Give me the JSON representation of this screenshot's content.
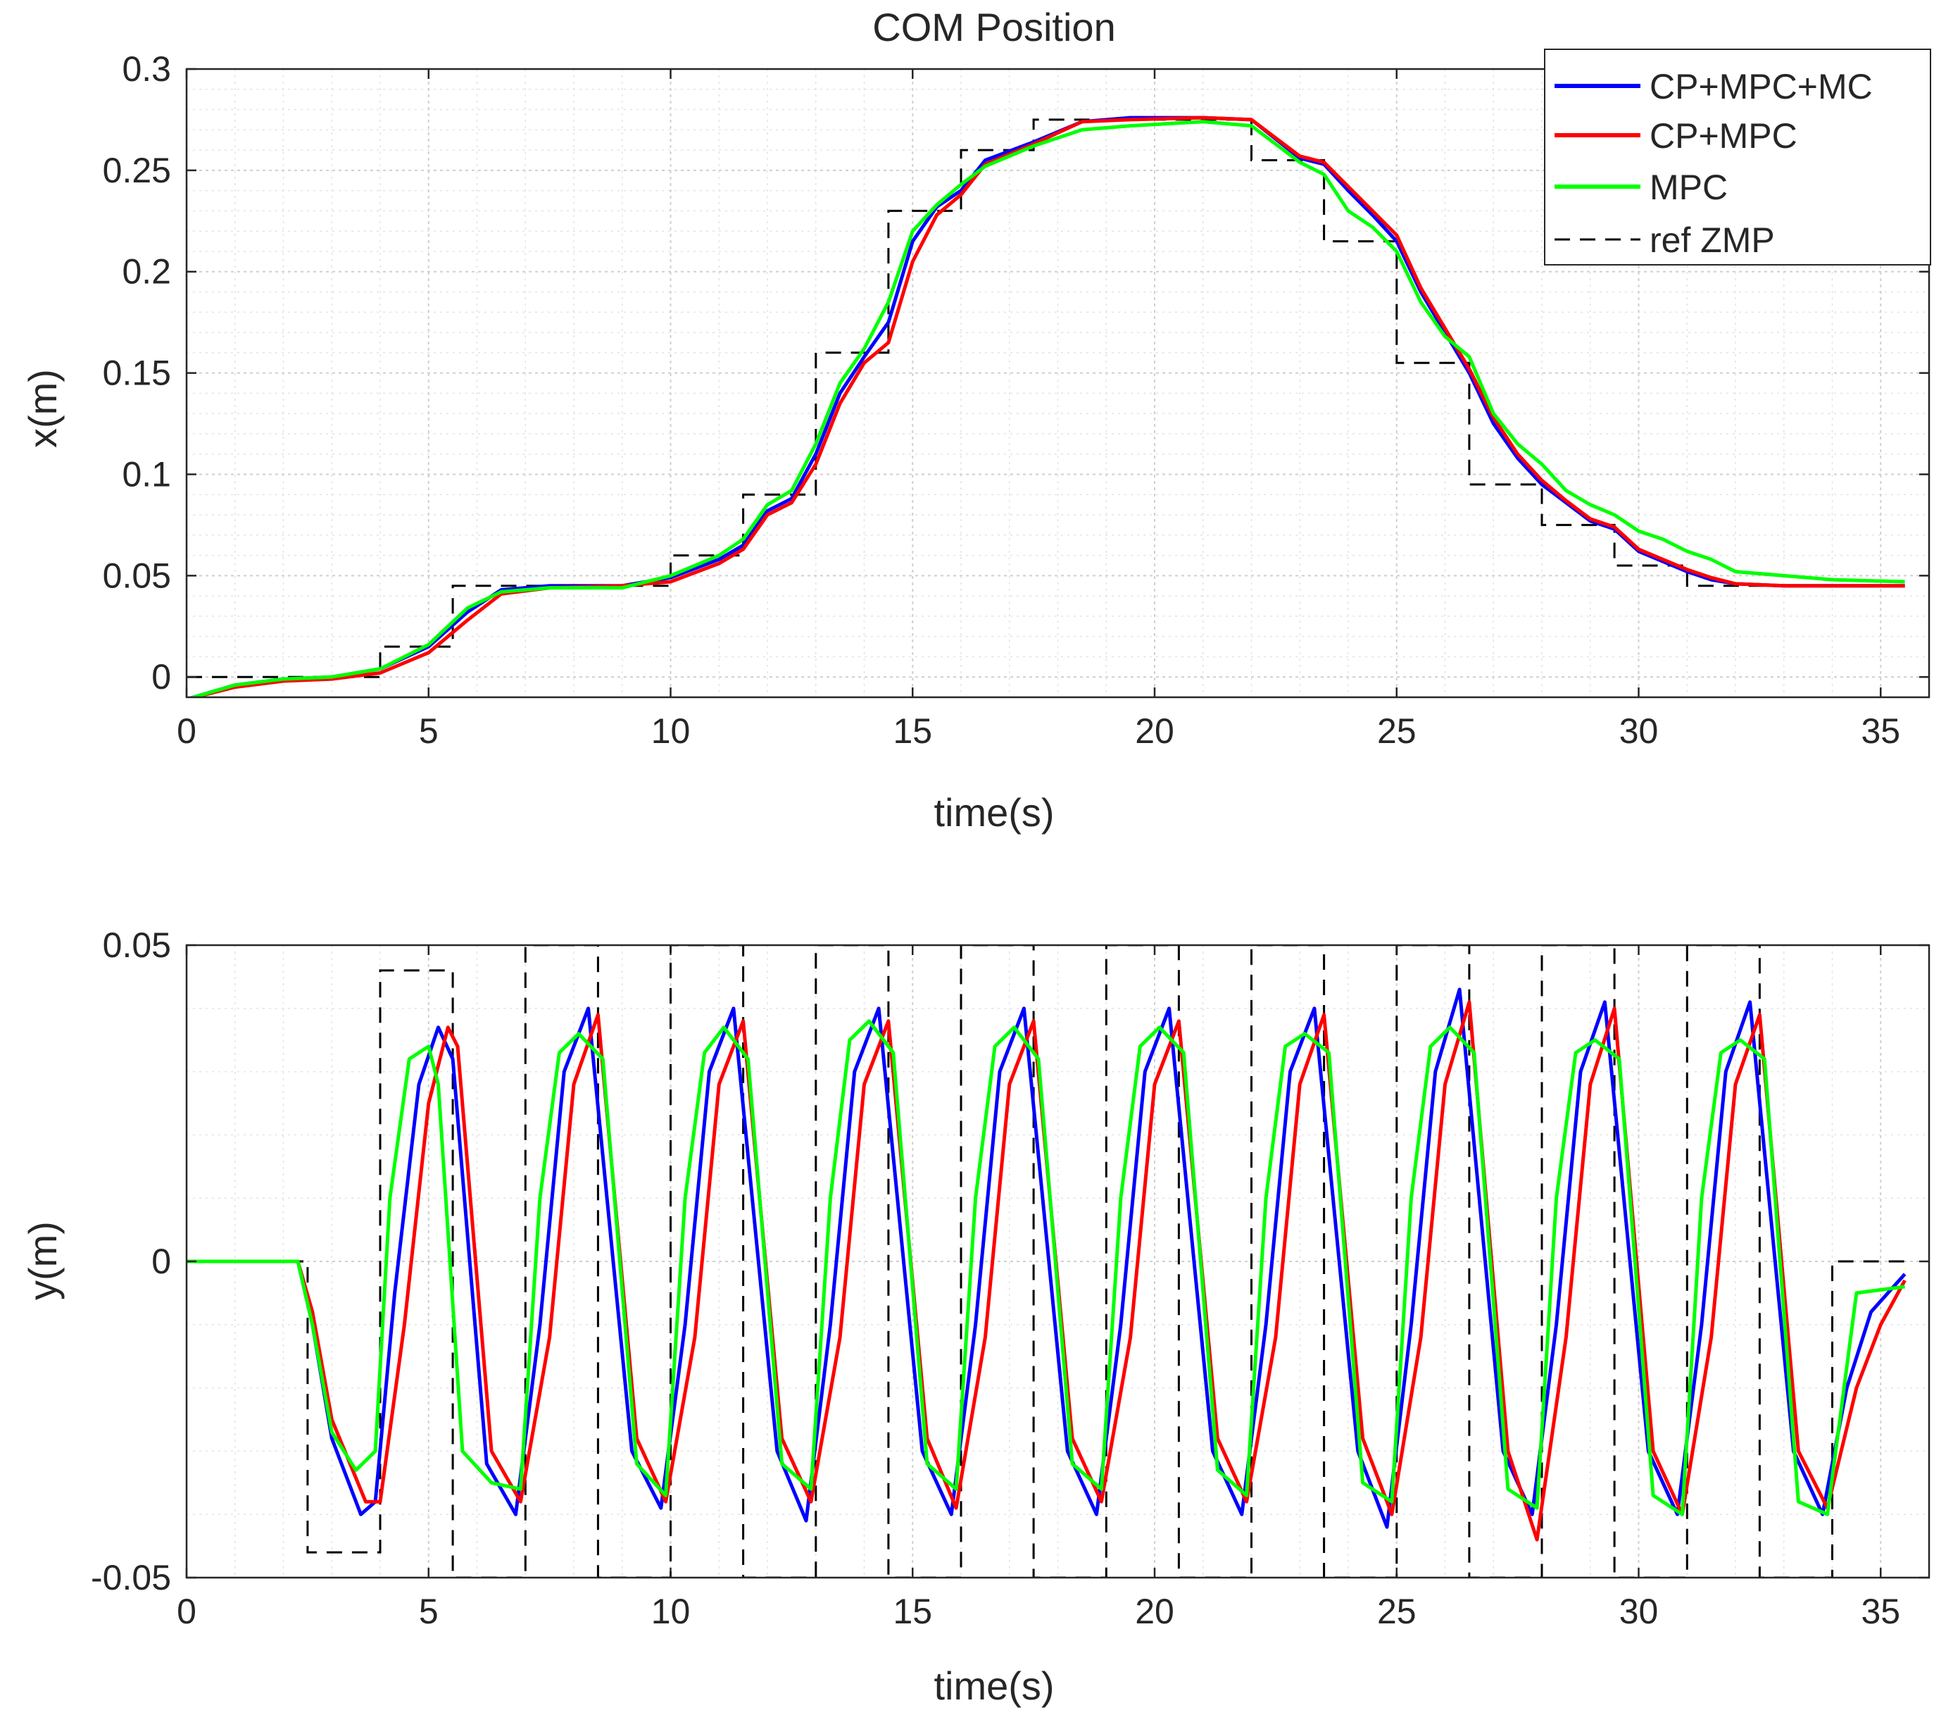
{
  "chart_data": [
    {
      "type": "line",
      "title": "COM Position",
      "xlabel": "time(s)",
      "ylabel": "x(m)",
      "xlim": [
        0,
        36
      ],
      "ylim": [
        -0.01,
        0.3
      ],
      "xticks": [
        0,
        5,
        10,
        15,
        20,
        25,
        30,
        35
      ],
      "yticks": [
        0,
        0.05,
        0.1,
        0.15,
        0.2,
        0.25,
        0.3
      ],
      "xtick_labels": [
        "0",
        "5",
        "10",
        "15",
        "20",
        "25",
        "30",
        "35"
      ],
      "ytick_labels": [
        "0",
        "0.05",
        "0.1",
        "0.15",
        "0.2",
        "0.25",
        "0.3"
      ],
      "grid": true,
      "legend_position": "top-right",
      "legend": [
        {
          "name": "CP+MPC+MC",
          "color": "#0000ff",
          "style": "solid"
        },
        {
          "name": "CP+MPC",
          "color": "#ff0000",
          "style": "solid"
        },
        {
          "name": "MPC",
          "color": "#00ff00",
          "style": "solid"
        },
        {
          "name": "ref ZMP",
          "color": "#000000",
          "style": "dashed"
        }
      ],
      "ref_zmp": {
        "x": [
          0,
          4,
          4,
          5.5,
          5.5,
          10,
          10,
          11.5,
          11.5,
          13,
          13,
          14.5,
          14.5,
          16,
          16,
          17.5,
          17.5,
          22,
          22,
          23.5,
          23.5,
          25,
          25,
          26.5,
          26.5,
          28,
          28,
          29.5,
          29.5,
          31,
          31,
          35.5
        ],
        "y": [
          0,
          0,
          0.015,
          0.015,
          0.045,
          0.045,
          0.06,
          0.06,
          0.09,
          0.09,
          0.16,
          0.16,
          0.23,
          0.23,
          0.26,
          0.26,
          0.275,
          0.275,
          0.255,
          0.255,
          0.215,
          0.215,
          0.155,
          0.155,
          0.095,
          0.095,
          0.075,
          0.075,
          0.055,
          0.055,
          0.045,
          0.045
        ]
      },
      "series": [
        {
          "name": "CP+MPC+MC",
          "color": "#0000ff",
          "x": [
            0,
            1,
            2,
            3,
            4,
            5,
            5.8,
            6.5,
            7.5,
            9,
            10,
            11,
            11.5,
            12,
            12.5,
            13,
            13.5,
            14,
            14.5,
            15,
            15.5,
            16,
            16.5,
            17.5,
            18.5,
            19.5,
            21,
            22,
            23,
            23.5,
            24,
            24.5,
            25,
            25.5,
            26,
            26.5,
            27,
            27.5,
            28,
            28.5,
            29,
            29.5,
            30,
            30.5,
            31,
            31.5,
            32,
            33,
            34,
            35.5
          ],
          "y": [
            -0.011,
            -0.004,
            -0.001,
            0,
            0.004,
            0.015,
            0.032,
            0.043,
            0.045,
            0.045,
            0.049,
            0.058,
            0.065,
            0.082,
            0.088,
            0.11,
            0.14,
            0.158,
            0.175,
            0.215,
            0.232,
            0.24,
            0.255,
            0.264,
            0.274,
            0.276,
            0.276,
            0.275,
            0.256,
            0.253,
            0.24,
            0.228,
            0.215,
            0.19,
            0.17,
            0.15,
            0.125,
            0.108,
            0.095,
            0.086,
            0.077,
            0.073,
            0.062,
            0.057,
            0.052,
            0.048,
            0.046,
            0.045,
            0.045,
            0.045
          ]
        },
        {
          "name": "CP+MPC",
          "color": "#ff0000",
          "x": [
            0,
            1,
            2,
            3,
            4,
            5,
            5.8,
            6.5,
            7.5,
            9,
            10,
            11,
            11.5,
            12,
            12.5,
            13,
            13.5,
            14,
            14.5,
            15,
            15.5,
            16,
            16.5,
            17.5,
            18.5,
            19.5,
            21,
            22,
            23,
            23.5,
            24,
            24.5,
            25,
            25.5,
            26,
            26.5,
            27,
            27.5,
            28,
            28.5,
            29,
            29.5,
            30,
            30.5,
            31,
            31.5,
            32,
            33,
            34,
            35.5
          ],
          "y": [
            -0.011,
            -0.005,
            -0.002,
            -0.001,
            0.002,
            0.012,
            0.028,
            0.041,
            0.044,
            0.045,
            0.047,
            0.056,
            0.063,
            0.08,
            0.086,
            0.105,
            0.135,
            0.155,
            0.165,
            0.205,
            0.228,
            0.238,
            0.253,
            0.263,
            0.274,
            0.275,
            0.276,
            0.275,
            0.257,
            0.254,
            0.242,
            0.23,
            0.218,
            0.192,
            0.172,
            0.152,
            0.128,
            0.11,
            0.097,
            0.087,
            0.078,
            0.074,
            0.063,
            0.058,
            0.053,
            0.049,
            0.046,
            0.045,
            0.045,
            0.045
          ]
        },
        {
          "name": "MPC",
          "color": "#00ff00",
          "x": [
            0,
            1,
            2,
            3,
            4,
            5,
            5.8,
            6.5,
            7.5,
            9,
            10,
            11,
            11.5,
            12,
            12.5,
            13,
            13.5,
            14,
            14.5,
            15,
            15.5,
            16,
            16.5,
            17.5,
            18.5,
            19.5,
            21,
            22,
            23,
            23.5,
            24,
            24.5,
            25,
            25.5,
            26,
            26.5,
            27,
            27.5,
            28,
            28.5,
            29,
            29.5,
            30,
            30.5,
            31,
            31.5,
            32,
            33,
            34,
            35.5
          ],
          "y": [
            -0.011,
            -0.004,
            -0.001,
            0,
            0.004,
            0.016,
            0.034,
            0.042,
            0.044,
            0.044,
            0.05,
            0.06,
            0.068,
            0.085,
            0.092,
            0.115,
            0.145,
            0.162,
            0.185,
            0.22,
            0.233,
            0.243,
            0.252,
            0.262,
            0.27,
            0.272,
            0.274,
            0.272,
            0.254,
            0.248,
            0.23,
            0.222,
            0.21,
            0.185,
            0.168,
            0.158,
            0.13,
            0.115,
            0.105,
            0.092,
            0.085,
            0.08,
            0.072,
            0.068,
            0.062,
            0.058,
            0.052,
            0.05,
            0.048,
            0.047
          ]
        }
      ]
    },
    {
      "type": "line",
      "title": "",
      "xlabel": "time(s)",
      "ylabel": "y(m)",
      "xlim": [
        0,
        36
      ],
      "ylim": [
        -0.05,
        0.05
      ],
      "xticks": [
        0,
        5,
        10,
        15,
        20,
        25,
        30,
        35
      ],
      "yticks": [
        -0.05,
        0,
        0.05
      ],
      "xtick_labels": [
        "0",
        "5",
        "10",
        "15",
        "20",
        "25",
        "30",
        "35"
      ],
      "ytick_labels": [
        "-0.05",
        "0",
        "0.05"
      ],
      "grid": true,
      "ref_zmp": {
        "x": [
          0,
          2.5,
          2.5,
          4,
          4,
          5.5,
          5.5,
          7,
          7,
          8.5,
          8.5,
          10,
          10,
          11.5,
          11.5,
          13,
          13,
          14.5,
          14.5,
          16,
          16,
          17.5,
          17.5,
          19,
          19,
          20.5,
          20.5,
          22,
          22,
          23.5,
          23.5,
          25,
          25,
          26.5,
          26.5,
          28,
          28,
          29.5,
          29.5,
          31,
          31,
          32.5,
          32.5,
          34,
          34,
          35.5
        ],
        "y": [
          0,
          0,
          -0.046,
          -0.046,
          0.046,
          0.046,
          -0.05,
          -0.05,
          0.05,
          0.05,
          -0.05,
          -0.05,
          0.05,
          0.05,
          -0.05,
          -0.05,
          0.05,
          0.05,
          -0.05,
          -0.05,
          0.05,
          0.05,
          -0.05,
          -0.05,
          0.05,
          0.05,
          -0.05,
          -0.05,
          0.05,
          0.05,
          -0.05,
          -0.05,
          0.05,
          0.05,
          -0.05,
          -0.05,
          0.05,
          0.05,
          -0.05,
          -0.05,
          0.05,
          0.05,
          -0.05,
          -0.05,
          0,
          0
        ]
      },
      "series": [
        {
          "name": "CP+MPC+MC",
          "color": "#0000ff",
          "x": [
            0,
            2.3,
            2.6,
            3,
            3.6,
            3.9,
            4.3,
            4.8,
            5.2,
            5.5,
            6.2,
            6.8,
            7.3,
            7.8,
            8.3,
            9.2,
            9.8,
            10.3,
            10.8,
            11.3,
            12.2,
            12.8,
            13.3,
            13.8,
            14.3,
            15.2,
            15.8,
            16.3,
            16.8,
            17.3,
            18.2,
            18.8,
            19.3,
            19.8,
            20.3,
            21.2,
            21.8,
            22.3,
            22.8,
            23.3,
            24.2,
            24.8,
            25.3,
            25.8,
            26.3,
            27.2,
            27.8,
            28.3,
            28.8,
            29.3,
            30.2,
            30.8,
            31.3,
            31.8,
            32.3,
            33.2,
            33.8,
            34.3,
            34.8,
            35.5
          ],
          "y": [
            0,
            0,
            -0.01,
            -0.028,
            -0.04,
            -0.038,
            -0.005,
            0.028,
            0.037,
            0.032,
            -0.032,
            -0.04,
            -0.01,
            0.03,
            0.04,
            -0.03,
            -0.039,
            -0.01,
            0.03,
            0.04,
            -0.03,
            -0.041,
            -0.01,
            0.03,
            0.04,
            -0.03,
            -0.04,
            -0.01,
            0.03,
            0.04,
            -0.03,
            -0.04,
            -0.01,
            0.03,
            0.04,
            -0.03,
            -0.04,
            -0.01,
            0.03,
            0.04,
            -0.03,
            -0.042,
            -0.01,
            0.03,
            0.043,
            -0.03,
            -0.04,
            -0.01,
            0.03,
            0.041,
            -0.03,
            -0.04,
            -0.01,
            0.03,
            0.041,
            -0.03,
            -0.04,
            -0.02,
            -0.008,
            -0.002
          ]
        },
        {
          "name": "CP+MPC",
          "color": "#ff0000",
          "x": [
            0,
            2.3,
            2.6,
            3,
            3.7,
            4,
            4.5,
            5,
            5.4,
            5.6,
            6.3,
            6.9,
            7.5,
            8,
            8.5,
            9.3,
            9.9,
            10.5,
            11,
            11.5,
            12.3,
            12.9,
            13.5,
            14,
            14.5,
            15.3,
            15.9,
            16.5,
            17,
            17.5,
            18.3,
            18.9,
            19.5,
            20,
            20.5,
            21.3,
            21.9,
            22.5,
            23,
            23.5,
            24.3,
            24.9,
            25.5,
            26,
            26.5,
            27.3,
            27.9,
            28.5,
            29,
            29.5,
            30.3,
            30.9,
            31.5,
            32,
            32.5,
            33.3,
            33.9,
            34.5,
            35,
            35.5
          ],
          "y": [
            0,
            0,
            -0.008,
            -0.025,
            -0.038,
            -0.038,
            -0.01,
            0.025,
            0.037,
            0.034,
            -0.03,
            -0.038,
            -0.012,
            0.028,
            0.039,
            -0.028,
            -0.038,
            -0.012,
            0.028,
            0.038,
            -0.028,
            -0.038,
            -0.012,
            0.028,
            0.038,
            -0.028,
            -0.039,
            -0.012,
            0.028,
            0.038,
            -0.028,
            -0.038,
            -0.012,
            0.028,
            0.038,
            -0.028,
            -0.038,
            -0.012,
            0.028,
            0.039,
            -0.028,
            -0.04,
            -0.012,
            0.028,
            0.041,
            -0.03,
            -0.044,
            -0.012,
            0.028,
            0.04,
            -0.03,
            -0.04,
            -0.012,
            0.028,
            0.039,
            -0.03,
            -0.039,
            -0.02,
            -0.01,
            -0.003
          ]
        },
        {
          "name": "MPC",
          "color": "#00ff00",
          "x": [
            0,
            2.3,
            2.6,
            3,
            3.5,
            3.9,
            4.2,
            4.6,
            5,
            5.2,
            5.7,
            6.3,
            6.9,
            7.3,
            7.7,
            8.1,
            8.6,
            9.3,
            9.9,
            10.3,
            10.7,
            11.1,
            11.6,
            12.3,
            12.9,
            13.3,
            13.7,
            14.1,
            14.6,
            15.3,
            15.9,
            16.3,
            16.7,
            17.1,
            17.6,
            18.3,
            18.9,
            19.3,
            19.7,
            20.1,
            20.6,
            21.3,
            21.9,
            22.3,
            22.7,
            23.1,
            23.6,
            24.3,
            24.9,
            25.3,
            25.7,
            26.1,
            26.6,
            27.3,
            27.9,
            28.3,
            28.7,
            29.1,
            29.6,
            30.3,
            30.9,
            31.3,
            31.7,
            32.1,
            32.6,
            33.3,
            33.9,
            34.5,
            35.5
          ],
          "y": [
            0,
            0,
            -0.01,
            -0.027,
            -0.033,
            -0.03,
            0.01,
            0.032,
            0.034,
            0.028,
            -0.03,
            -0.035,
            -0.036,
            0.01,
            0.033,
            0.036,
            0.032,
            -0.032,
            -0.037,
            0.01,
            0.033,
            0.037,
            0.032,
            -0.032,
            -0.036,
            0.01,
            0.035,
            0.038,
            0.033,
            -0.032,
            -0.036,
            0.01,
            0.034,
            0.037,
            0.032,
            -0.032,
            -0.036,
            0.01,
            0.034,
            0.037,
            0.033,
            -0.033,
            -0.037,
            0.01,
            0.034,
            0.036,
            0.033,
            -0.035,
            -0.038,
            0.01,
            0.034,
            0.037,
            0.033,
            -0.036,
            -0.039,
            0.01,
            0.033,
            0.035,
            0.032,
            -0.037,
            -0.04,
            0.01,
            0.033,
            0.035,
            0.032,
            -0.038,
            -0.04,
            -0.005,
            -0.004
          ]
        }
      ]
    }
  ]
}
